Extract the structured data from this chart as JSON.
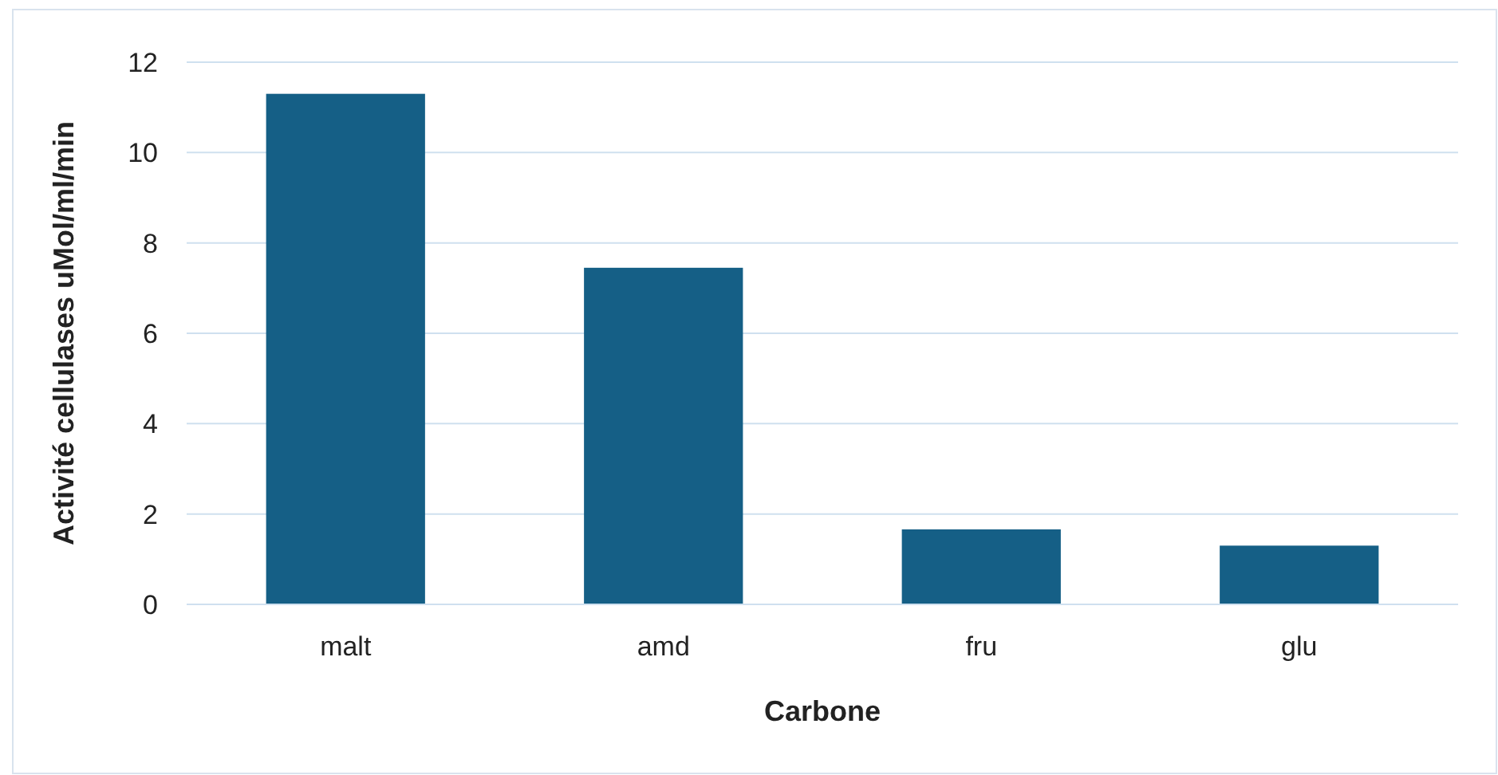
{
  "chart_data": {
    "type": "bar",
    "xlabel": "Carbone",
    "ylabel": "Activité cellulases uMol/ml/min",
    "categories": [
      "malt",
      "amd",
      "fru",
      "glu"
    ],
    "values": [
      11.3,
      7.45,
      1.66,
      1.3
    ],
    "color": "#155f86",
    "ylim": [
      0,
      12
    ],
    "yticks": [
      0,
      2,
      4,
      6,
      8,
      10,
      12
    ],
    "grid": "y"
  }
}
